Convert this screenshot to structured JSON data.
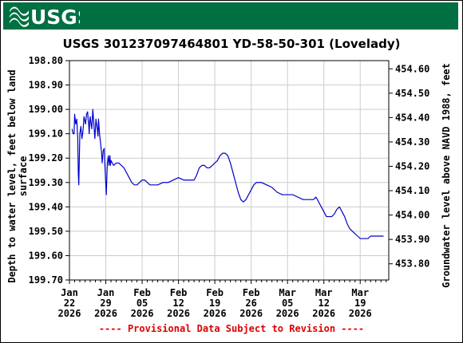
{
  "header": {
    "logo_text": "USGS",
    "banner_color": "#006f41"
  },
  "chart_data": {
    "type": "line",
    "title": "USGS 301237097464801 YD-58-50-301 (Lovelady)",
    "ylabel_left": [
      "Depth to water level, feet below land",
      "surface"
    ],
    "ylabel_right": "Groundwater level above NAVD 1988, feet",
    "footer": "---- Provisional Data Subject to Revision ----",
    "y_left_range": [
      198.8,
      199.7
    ],
    "y_left_ticks": [
      "198.80",
      "198.90",
      "199.00",
      "199.10",
      "199.20",
      "199.30",
      "199.40",
      "199.50",
      "199.60",
      "199.70"
    ],
    "y_right_range": [
      454.6336,
      453.7336
    ],
    "y_right_ticks": [
      "454.60",
      "454.50",
      "454.40",
      "454.30",
      "454.20",
      "454.10",
      "454.00",
      "453.90",
      "453.80"
    ],
    "x_range_days": [
      0,
      61.5
    ],
    "x_ticks": [
      {
        "month": "Jan",
        "day": "22",
        "year": "2026",
        "d": 0
      },
      {
        "month": "Jan",
        "day": "29",
        "year": "2026",
        "d": 7
      },
      {
        "month": "Feb",
        "day": "05",
        "year": "2026",
        "d": 14
      },
      {
        "month": "Feb",
        "day": "12",
        "year": "2026",
        "d": 21
      },
      {
        "month": "Feb",
        "day": "19",
        "year": "2026",
        "d": 28
      },
      {
        "month": "Feb",
        "day": "26",
        "year": "2026",
        "d": 35
      },
      {
        "month": "Mar",
        "day": "05",
        "year": "2026",
        "d": 42
      },
      {
        "month": "Mar",
        "day": "12",
        "year": "2026",
        "d": 49
      },
      {
        "month": "Mar",
        "day": "19",
        "year": "2026",
        "d": 56
      }
    ],
    "grid": true,
    "series": [
      {
        "color": "#0000cc",
        "points": [
          [
            0.5,
            199.08
          ],
          [
            0.7,
            199.1
          ],
          [
            0.9,
            199.1
          ],
          [
            1.0,
            199.02
          ],
          [
            1.2,
            199.06
          ],
          [
            1.4,
            199.04
          ],
          [
            1.6,
            199.12
          ],
          [
            1.7,
            199.26
          ],
          [
            1.8,
            199.31
          ],
          [
            2.0,
            199.1
          ],
          [
            2.2,
            199.07
          ],
          [
            2.4,
            199.12
          ],
          [
            2.6,
            199.09
          ],
          [
            2.8,
            199.03
          ],
          [
            3.0,
            199.05
          ],
          [
            3.1,
            199.06
          ],
          [
            3.3,
            199.02
          ],
          [
            3.5,
            199.01
          ],
          [
            3.6,
            199.04
          ],
          [
            3.7,
            199.06
          ],
          [
            3.8,
            199.1
          ],
          [
            3.9,
            199.05
          ],
          [
            4.0,
            199.03
          ],
          [
            4.1,
            199.05
          ],
          [
            4.3,
            199.08
          ],
          [
            4.5,
            199.0
          ],
          [
            4.6,
            199.03
          ],
          [
            4.7,
            199.06
          ],
          [
            4.8,
            199.09
          ],
          [
            4.9,
            199.12
          ],
          [
            5.1,
            199.04
          ],
          [
            5.3,
            199.07
          ],
          [
            5.5,
            199.11
          ],
          [
            5.6,
            199.04
          ],
          [
            5.7,
            199.07
          ],
          [
            5.8,
            199.1
          ],
          [
            6.0,
            199.14
          ],
          [
            6.2,
            199.18
          ],
          [
            6.3,
            199.22
          ],
          [
            6.5,
            199.17
          ],
          [
            6.7,
            199.16
          ],
          [
            6.8,
            199.22
          ],
          [
            6.9,
            199.26
          ],
          [
            7.0,
            199.31
          ],
          [
            7.1,
            199.35
          ],
          [
            7.2,
            199.28
          ],
          [
            7.3,
            199.22
          ],
          [
            7.5,
            199.19
          ],
          [
            7.6,
            199.23
          ],
          [
            7.7,
            199.21
          ],
          [
            7.8,
            199.19
          ],
          [
            7.9,
            199.23
          ],
          [
            8.0,
            199.21
          ],
          [
            8.5,
            199.23
          ],
          [
            9.0,
            199.22
          ],
          [
            9.5,
            199.22
          ],
          [
            10.0,
            199.23
          ],
          [
            10.5,
            199.24
          ],
          [
            11.0,
            199.26
          ],
          [
            11.5,
            199.28
          ],
          [
            12.0,
            199.3
          ],
          [
            12.5,
            199.31
          ],
          [
            13.0,
            199.31
          ],
          [
            13.5,
            199.3
          ],
          [
            14.0,
            199.29
          ],
          [
            14.5,
            199.29
          ],
          [
            15.0,
            199.3
          ],
          [
            15.5,
            199.31
          ],
          [
            16.0,
            199.31
          ],
          [
            17.0,
            199.31
          ],
          [
            18.0,
            199.3
          ],
          [
            19.0,
            199.3
          ],
          [
            20.0,
            199.29
          ],
          [
            21.0,
            199.28
          ],
          [
            22.0,
            199.29
          ],
          [
            23.0,
            199.29
          ],
          [
            24.0,
            199.29
          ],
          [
            24.5,
            199.27
          ],
          [
            25.0,
            199.24
          ],
          [
            25.5,
            199.23
          ],
          [
            26.0,
            199.23
          ],
          [
            26.5,
            199.24
          ],
          [
            27.0,
            199.24
          ],
          [
            27.5,
            199.23
          ],
          [
            28.0,
            199.22
          ],
          [
            28.5,
            199.21
          ],
          [
            29.0,
            199.19
          ],
          [
            29.5,
            199.18
          ],
          [
            30.0,
            199.18
          ],
          [
            30.5,
            199.19
          ],
          [
            31.0,
            199.22
          ],
          [
            31.5,
            199.26
          ],
          [
            32.0,
            199.3
          ],
          [
            32.5,
            199.34
          ],
          [
            33.0,
            199.37
          ],
          [
            33.5,
            199.38
          ],
          [
            34.0,
            199.37
          ],
          [
            34.5,
            199.35
          ],
          [
            35.0,
            199.33
          ],
          [
            35.5,
            199.31
          ],
          [
            36.0,
            199.3
          ],
          [
            37.0,
            199.3
          ],
          [
            38.0,
            199.31
          ],
          [
            39.0,
            199.32
          ],
          [
            40.0,
            199.34
          ],
          [
            41.0,
            199.35
          ],
          [
            42.0,
            199.35
          ],
          [
            43.0,
            199.35
          ],
          [
            44.0,
            199.36
          ],
          [
            45.0,
            199.37
          ],
          [
            46.0,
            199.37
          ],
          [
            47.0,
            199.37
          ],
          [
            47.5,
            199.36
          ],
          [
            48.0,
            199.38
          ],
          [
            48.5,
            199.4
          ],
          [
            49.0,
            199.42
          ],
          [
            49.5,
            199.44
          ],
          [
            50.0,
            199.44
          ],
          [
            50.5,
            199.44
          ],
          [
            51.0,
            199.43
          ],
          [
            51.5,
            199.41
          ],
          [
            52.0,
            199.4
          ],
          [
            52.5,
            199.42
          ],
          [
            53.0,
            199.44
          ],
          [
            53.5,
            199.47
          ],
          [
            54.0,
            199.49
          ],
          [
            54.5,
            199.5
          ],
          [
            55.0,
            199.51
          ],
          [
            55.5,
            199.52
          ],
          [
            56.0,
            199.53
          ],
          [
            56.5,
            199.53
          ],
          [
            57.0,
            199.53
          ],
          [
            57.5,
            199.53
          ],
          [
            58.0,
            199.52
          ],
          [
            58.5,
            199.52
          ],
          [
            59.0,
            199.52
          ],
          [
            59.5,
            199.52
          ],
          [
            60.0,
            199.52
          ],
          [
            60.5,
            199.52
          ]
        ]
      }
    ]
  }
}
